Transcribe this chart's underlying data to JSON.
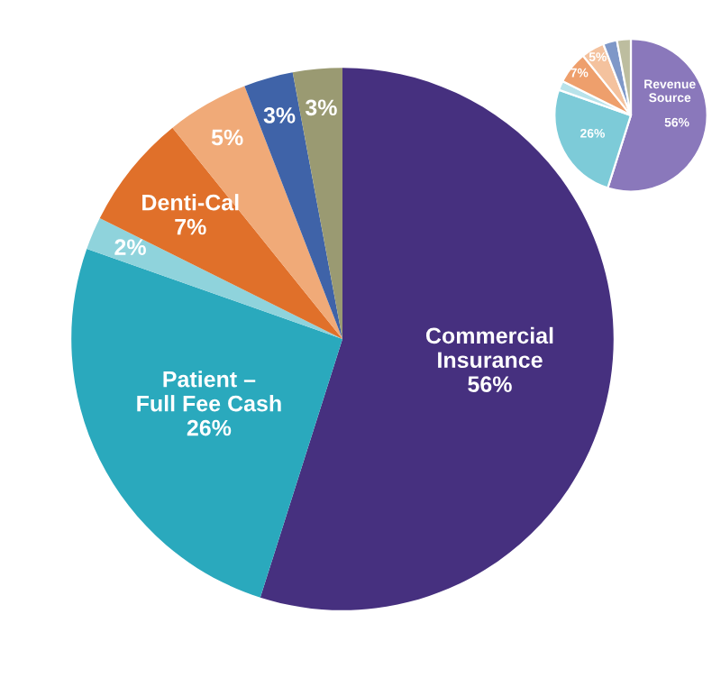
{
  "chart_data": [
    {
      "type": "pie",
      "categories": [
        "Commercial\nInsurance",
        "Patient –\nFull Fee Cash",
        null,
        "Denti-Cal",
        null,
        null,
        null
      ],
      "values": [
        56,
        26,
        2,
        7,
        5,
        3,
        3
      ],
      "value_labels": [
        "56%",
        "26%",
        "2%",
        "7%",
        "5%",
        "3%",
        "3%"
      ],
      "colors": [
        "#46307f",
        "#2aa9bd",
        "#8fd3dc",
        "#e0702a",
        "#f0aa78",
        "#3f63a8",
        "#9a9a72"
      ]
    },
    {
      "type": "pie",
      "categories": [
        null,
        null,
        null,
        null,
        null,
        null,
        null
      ],
      "values": [
        56,
        26,
        2,
        7,
        5,
        3,
        3
      ],
      "value_labels": [
        "56%",
        "26%",
        null,
        "7%",
        "5%",
        null,
        null
      ],
      "colors": [
        "#8a78bb",
        "#7dcbd8",
        "#b9e3ea",
        "#ee9f6c",
        "#f4c29e",
        "#7f98c8",
        "#bdbd9f"
      ],
      "annotations": [
        "Revenue Source"
      ]
    }
  ]
}
